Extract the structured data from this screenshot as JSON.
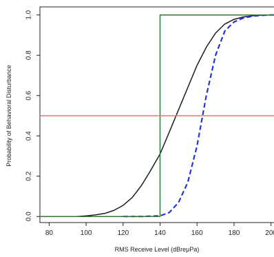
{
  "chart_data": {
    "type": "line",
    "title": "",
    "xlabel": "RMS Receive Level (dBreμPa)",
    "ylabel": "Probability of Behavioral Disturbance",
    "xlim": [
      75,
      202
    ],
    "ylim": [
      -0.03,
      1.04
    ],
    "x_ticks": [
      80,
      100,
      120,
      140,
      160,
      180,
      200
    ],
    "x_tick_labels": [
      "80",
      "100",
      "120",
      "140",
      "160",
      "180",
      "200"
    ],
    "y_ticks": [
      0.0,
      0.2,
      0.4,
      0.6,
      0.8,
      1.0
    ],
    "y_tick_labels": [
      "0.0",
      "0.2",
      "0.4",
      "0.6",
      "0.8",
      "1.0"
    ],
    "grid": false,
    "legend": "none",
    "series": [
      {
        "style": "solid",
        "color": "#1a1a1a",
        "x": [
          95,
          100,
          105,
          110,
          115,
          120,
          125,
          130,
          135,
          140,
          145,
          150,
          155,
          160,
          165,
          170,
          175,
          180,
          185,
          190,
          195,
          200,
          202
        ],
        "y": [
          0.0,
          0.003,
          0.008,
          0.015,
          0.03,
          0.055,
          0.095,
          0.155,
          0.23,
          0.31,
          0.42,
          0.53,
          0.64,
          0.75,
          0.84,
          0.91,
          0.955,
          0.978,
          0.99,
          0.996,
          0.999,
          1.0,
          1.0
        ]
      },
      {
        "style": "dashed",
        "color": "#2233dd",
        "x": [
          120,
          130,
          140,
          145,
          150,
          155,
          160,
          163,
          165,
          170,
          175,
          180,
          185,
          190,
          195,
          200,
          202
        ],
        "y": [
          0.0,
          0.0,
          0.003,
          0.02,
          0.07,
          0.17,
          0.35,
          0.5,
          0.6,
          0.8,
          0.92,
          0.965,
          0.985,
          0.994,
          0.998,
          1.0,
          1.0
        ]
      },
      {
        "style": "solid",
        "color": "#2e7d32",
        "x": [
          75,
          140,
          140,
          202
        ],
        "y": [
          0.0,
          0.0,
          1.0,
          1.0
        ]
      },
      {
        "style": "solid",
        "color": "#e07a70",
        "x": [
          75,
          202
        ],
        "y": [
          0.5,
          0.5
        ]
      }
    ]
  }
}
